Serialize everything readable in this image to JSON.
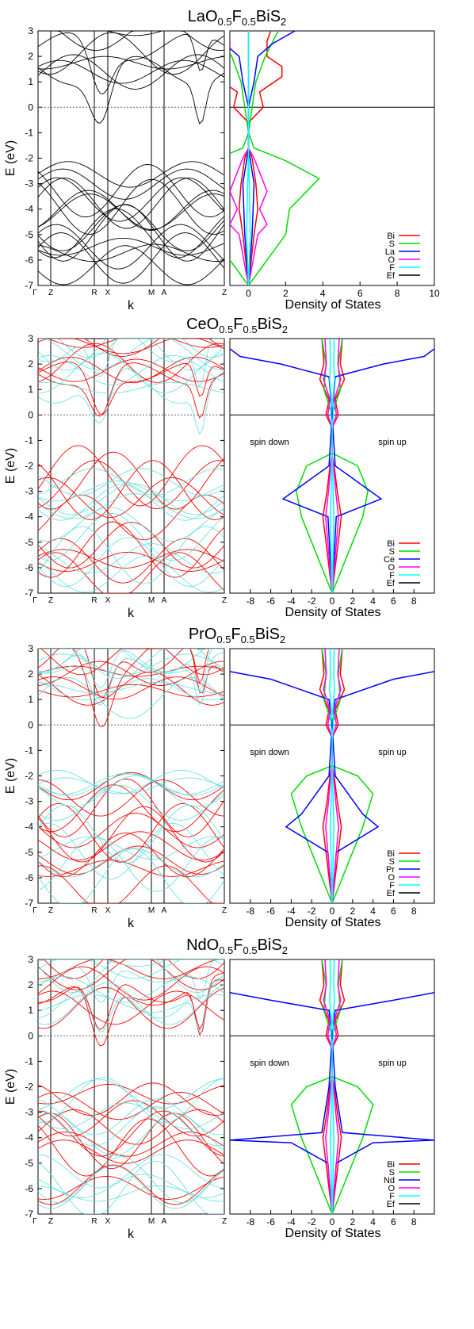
{
  "chart_data": [
    {
      "type": "line",
      "title": "LaO0.5F0.5BiS2",
      "title_parts": {
        "base": "LaO",
        "sub1": "0.5",
        "mid": "F",
        "sub2": "0.5",
        "tail": "BiS",
        "sub3": "2"
      },
      "panels": [
        {
          "name": "band-structure",
          "xlabel": "k",
          "ylabel": "E (eV)",
          "ylim": [
            -7,
            3
          ],
          "yticks": [
            "3",
            "2",
            "1",
            "0",
            "-1",
            "-2",
            "-3",
            "-4",
            "-5",
            "-6",
            "-7"
          ],
          "kpoints": [
            "Γ",
            "Z",
            "R",
            "X",
            "M",
            "A",
            "Z"
          ],
          "fermi_level": 0,
          "series": [
            {
              "name": "",
              "color": "#000000",
              "description": "bands",
              "values": [
                {
                  "valence_top": -1.9,
                  "conduction_min": -0.7,
                  "conduction_min_at": "R-X"
                }
              ]
            }
          ]
        },
        {
          "name": "density-of-states",
          "xlabel": "Density of States",
          "xlim": [
            -1,
            10
          ],
          "xticks": [
            "0",
            "2",
            "4",
            "6",
            "8",
            "10"
          ],
          "ylim": [
            -7,
            3
          ],
          "legend": [
            "Bi",
            "S",
            "La",
            "O",
            "F",
            "Ef"
          ],
          "legend_position": "bottom-right",
          "series": [
            {
              "name": "Bi",
              "color": "#ff0000",
              "points": [
                [
                  0,
                  -7
                ],
                [
                  0.3,
                  -5
                ],
                [
                  0.5,
                  -4
                ],
                [
                  0.4,
                  -3
                ],
                [
                  0.2,
                  -2
                ],
                [
                  0,
                  -1.6
                ],
                [
                  0,
                  -0.6
                ],
                [
                  0.8,
                  0
                ],
                [
                  0.6,
                  0.6
                ],
                [
                  1.8,
                  1.2
                ],
                [
                  1.8,
                  1.6
                ],
                [
                  1,
                  2
                ],
                [
                  1,
                  2.6
                ],
                [
                  1.2,
                  3
                ]
              ]
            },
            {
              "name": "S",
              "color": "#00dd00",
              "points": [
                [
                  0,
                  -7
                ],
                [
                  1,
                  -6
                ],
                [
                  2,
                  -5
                ],
                [
                  2.2,
                  -4
                ],
                [
                  3.8,
                  -2.8
                ],
                [
                  2,
                  -2.1
                ],
                [
                  0.3,
                  -1.6
                ],
                [
                  0,
                  -1
                ],
                [
                  0.2,
                  0
                ],
                [
                  0.4,
                  1
                ],
                [
                  0.9,
                  2
                ],
                [
                  1.6,
                  3
                ]
              ]
            },
            {
              "name": "La",
              "color": "#0000ff",
              "points": [
                [
                  0,
                  -7
                ],
                [
                  0.2,
                  -5
                ],
                [
                  0.3,
                  -3
                ],
                [
                  0,
                  -1.6
                ],
                [
                  0,
                  0
                ],
                [
                  0.3,
                  1
                ],
                [
                  0.5,
                  2
                ],
                [
                  1.3,
                  2.5
                ],
                [
                  2.5,
                  3
                ]
              ]
            },
            {
              "name": "O",
              "color": "#ff00ff",
              "points": [
                [
                  0,
                  -7
                ],
                [
                  0.5,
                  -5
                ],
                [
                  1,
                  -4.6
                ],
                [
                  0.6,
                  -4
                ],
                [
                  1,
                  -3.3
                ],
                [
                  0.3,
                  -2
                ],
                [
                  0,
                  -1.6
                ],
                [
                  0,
                  3
                ]
              ]
            },
            {
              "name": "F",
              "color": "#00ffff",
              "points": [
                [
                  0,
                  -7
                ],
                [
                  0.1,
                  -5
                ],
                [
                  0,
                  -1.6
                ],
                [
                  0,
                  3
                ]
              ]
            },
            {
              "name": "Ef",
              "color": "#000000",
              "points": [
                [
                  -1,
                  0
                ],
                [
                  10,
                  0
                ]
              ]
            }
          ]
        }
      ]
    },
    {
      "type": "line",
      "title": "CeO0.5F0.5BiS2",
      "title_parts": {
        "base": "CeO",
        "sub1": "0.5",
        "mid": "F",
        "sub2": "0.5",
        "tail": "BiS",
        "sub3": "2"
      },
      "panels": [
        {
          "name": "band-structure",
          "xlabel": "k",
          "ylabel": "E (eV)",
          "ylim": [
            -7,
            3
          ],
          "yticks": [
            "3",
            "2",
            "1",
            "0",
            "-1",
            "-2",
            "-3",
            "-4",
            "-5",
            "-6",
            "-7"
          ],
          "kpoints": [
            "Γ",
            "Z",
            "R",
            "X",
            "M",
            "A",
            "Z"
          ],
          "fermi_level": 0,
          "series": [
            {
              "name": "",
              "color": "#ff0000",
              "description": "spin up bands"
            },
            {
              "name": "",
              "color": "#55dddd",
              "description": "spin down bands"
            }
          ]
        },
        {
          "name": "density-of-states",
          "xlabel": "Density of States",
          "xlim": [
            -10,
            10
          ],
          "xticks": [
            "-8",
            "-6",
            "-4",
            "-2",
            "0",
            "2",
            "4",
            "6",
            "8"
          ],
          "ylim": [
            -7,
            3
          ],
          "annotations": [
            "spin down",
            "spin up"
          ],
          "legend": [
            "Bi",
            "S",
            "Ce",
            "O",
            "F",
            "Ef"
          ],
          "legend_position": "bottom-right",
          "series": [
            {
              "name": "Bi",
              "color": "#ff0000"
            },
            {
              "name": "S",
              "color": "#00dd00",
              "points": [
                [
                  0,
                  -7
                ],
                [
                  2,
                  -5
                ],
                [
                  3,
                  -4
                ],
                [
                  3.5,
                  -3
                ],
                [
                  2.5,
                  -2
                ],
                [
                  0,
                  -1.5
                ],
                [
                  0,
                  0
                ],
                [
                  0.8,
                  1
                ],
                [
                  0.6,
                  2
                ],
                [
                  1,
                  3
                ]
              ]
            },
            {
              "name": "Ce",
              "color": "#0000ff",
              "points": [
                [
                  0,
                  -7
                ],
                [
                  0.4,
                  -4
                ],
                [
                  4.8,
                  -3.3
                ],
                [
                  0.3,
                  -2
                ],
                [
                  0,
                  0
                ],
                [
                  0.3,
                  1.5
                ],
                [
                  5,
                  2
                ],
                [
                  9,
                  2.3
                ],
                [
                  10,
                  2.6
                ]
              ]
            },
            {
              "name": "O",
              "color": "#ff00ff"
            },
            {
              "name": "F",
              "color": "#00ffff"
            },
            {
              "name": "Ef",
              "color": "#000000",
              "points": [
                [
                  -10,
                  0
                ],
                [
                  10,
                  0
                ]
              ]
            }
          ]
        }
      ]
    },
    {
      "type": "line",
      "title": "PrO0.5F0.5BiS2",
      "title_parts": {
        "base": "PrO",
        "sub1": "0.5",
        "mid": "F",
        "sub2": "0.5",
        "tail": "BiS",
        "sub3": "2"
      },
      "panels": [
        {
          "name": "band-structure",
          "xlabel": "k",
          "ylabel": "E (eV)",
          "ylim": [
            -7,
            3
          ],
          "yticks": [
            "3",
            "2",
            "1",
            "0",
            "-1",
            "-2",
            "-3",
            "-4",
            "-5",
            "-6",
            "-7"
          ],
          "kpoints": [
            "Γ",
            "Z",
            "R",
            "X",
            "M",
            "A",
            "Z"
          ],
          "fermi_level": 0,
          "series": [
            {
              "name": "",
              "color": "#ff0000",
              "description": "spin up bands"
            },
            {
              "name": "",
              "color": "#55dddd",
              "description": "spin down bands"
            }
          ]
        },
        {
          "name": "density-of-states",
          "xlabel": "Density of States",
          "xlim": [
            -10,
            10
          ],
          "xticks": [
            "-8",
            "-6",
            "-4",
            "-2",
            "0",
            "2",
            "4",
            "6",
            "8"
          ],
          "ylim": [
            -7,
            3
          ],
          "annotations": [
            "spin down",
            "spin up"
          ],
          "legend": [
            "Bi",
            "S",
            "Pr",
            "O",
            "F",
            "Ef"
          ],
          "legend_position": "bottom-right",
          "series": [
            {
              "name": "Bi",
              "color": "#ff0000"
            },
            {
              "name": "S",
              "color": "#00dd00",
              "points": [
                [
                  0,
                  -7
                ],
                [
                  2,
                  -5
                ],
                [
                  3,
                  -4
                ],
                [
                  4,
                  -2.7
                ],
                [
                  2.5,
                  -2
                ],
                [
                  0,
                  -1.6
                ],
                [
                  0,
                  0
                ],
                [
                  0.8,
                  1
                ],
                [
                  0.6,
                  2
                ],
                [
                  1,
                  3
                ]
              ]
            },
            {
              "name": "Pr",
              "color": "#0000ff",
              "points": [
                [
                  0,
                  -7
                ],
                [
                  0.4,
                  -5
                ],
                [
                  4.5,
                  -4
                ],
                [
                  3,
                  -3.5
                ],
                [
                  0.3,
                  -2
                ],
                [
                  0,
                  0
                ],
                [
                  0.3,
                  1
                ],
                [
                  6,
                  1.8
                ],
                [
                  10,
                  2.1
                ]
              ]
            },
            {
              "name": "O",
              "color": "#ff00ff"
            },
            {
              "name": "F",
              "color": "#00ffff"
            },
            {
              "name": "Ef",
              "color": "#000000",
              "points": [
                [
                  -10,
                  0
                ],
                [
                  10,
                  0
                ]
              ]
            }
          ]
        }
      ]
    },
    {
      "type": "line",
      "title": "NdO0.5F0.5BiS2",
      "title_parts": {
        "base": "NdO",
        "sub1": "0.5",
        "mid": "F",
        "sub2": "0.5",
        "tail": "BiS",
        "sub3": "2"
      },
      "panels": [
        {
          "name": "band-structure",
          "xlabel": "k",
          "ylabel": "E (eV)",
          "ylim": [
            -7,
            3
          ],
          "yticks": [
            "3",
            "2",
            "1",
            "0",
            "-1",
            "-2",
            "-3",
            "-4",
            "-5",
            "-6",
            "-7"
          ],
          "kpoints": [
            "Γ",
            "Z",
            "R",
            "X",
            "M",
            "A",
            "Z"
          ],
          "fermi_level": 0,
          "series": [
            {
              "name": "",
              "color": "#ff0000",
              "description": "spin up bands"
            },
            {
              "name": "",
              "color": "#55dddd",
              "description": "spin down bands"
            }
          ]
        },
        {
          "name": "density-of-states",
          "xlabel": "Density of States",
          "xlim": [
            -10,
            10
          ],
          "xticks": [
            "-8",
            "-6",
            "-4",
            "-2",
            "0",
            "2",
            "4",
            "6",
            "8"
          ],
          "ylim": [
            -7,
            3
          ],
          "annotations": [
            "spin down",
            "spin up"
          ],
          "legend": [
            "Bi",
            "S",
            "Nd",
            "O",
            "F",
            "Ef"
          ],
          "legend_position": "bottom-right",
          "series": [
            {
              "name": "Bi",
              "color": "#ff0000"
            },
            {
              "name": "S",
              "color": "#00dd00",
              "points": [
                [
                  0,
                  -7
                ],
                [
                  2,
                  -5
                ],
                [
                  3,
                  -4
                ],
                [
                  4,
                  -2.7
                ],
                [
                  2.5,
                  -2
                ],
                [
                  0,
                  -1.6
                ],
                [
                  0,
                  0
                ],
                [
                  0.8,
                  1
                ],
                [
                  0.6,
                  2
                ],
                [
                  1,
                  3
                ]
              ]
            },
            {
              "name": "Nd",
              "color": "#0000ff",
              "points": [
                [
                  0,
                  -7
                ],
                [
                  0.4,
                  -5
                ],
                [
                  4,
                  -4.2
                ],
                [
                  10,
                  -4.1
                ],
                [
                  1,
                  -3.8
                ],
                [
                  0.3,
                  -2
                ],
                [
                  0,
                  0
                ],
                [
                  0.3,
                  1
                ],
                [
                  6,
                  1.4
                ],
                [
                  10,
                  1.7
                ]
              ]
            },
            {
              "name": "O",
              "color": "#ff00ff"
            },
            {
              "name": "F",
              "color": "#00ffff"
            },
            {
              "name": "Ef",
              "color": "#000000",
              "points": [
                [
                  -10,
                  0
                ],
                [
                  10,
                  0
                ]
              ]
            }
          ]
        }
      ]
    }
  ]
}
